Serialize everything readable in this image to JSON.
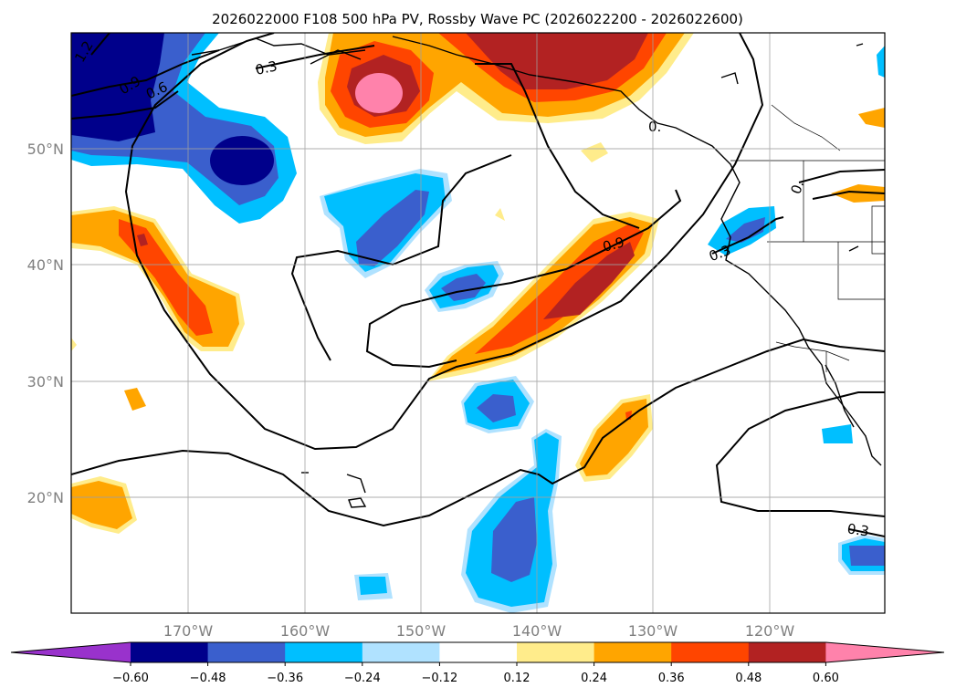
{
  "title": "2026022000 F108 500 hPa PV, Rossby Wave PC (2026022200 - 2026022600)",
  "map": {
    "lat_labels": [
      "50°N",
      "40°N",
      "30°N",
      "20°N"
    ],
    "lon_labels": [
      "170°W",
      "160°W",
      "150°W",
      "140°W",
      "130°W",
      "120°W"
    ],
    "grid": true
  },
  "contour_labels": [
    "1.2",
    "0.9",
    "0.6",
    "0.3",
    "0.9",
    "0.3",
    "0.",
    "0.",
    "0.3"
  ],
  "colorbar": {
    "ticks": [
      "−0.60",
      "−0.48",
      "−0.36",
      "−0.24",
      "−0.12",
      "0.12",
      "0.24",
      "0.36",
      "0.48",
      "0.60"
    ],
    "colors": [
      "#9932cc",
      "#00008b",
      "#3a5fcd",
      "#00bfff",
      "#b0e2ff",
      "#ffffff",
      "#ffec8b",
      "#ffa500",
      "#ff4500",
      "#b22222",
      "#ff82ab"
    ]
  }
}
